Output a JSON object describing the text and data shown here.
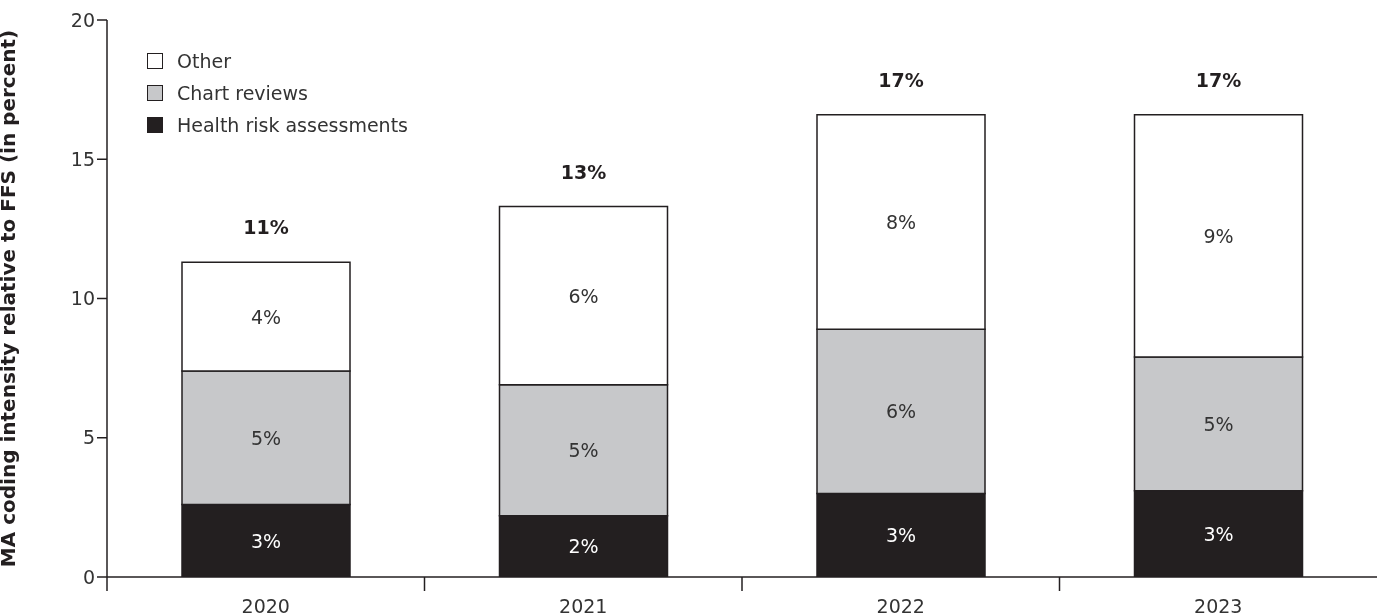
{
  "chart_data": {
    "type": "bar",
    "stacked": true,
    "ylabel": "MA coding intensity relative to FFS (in percent)",
    "categories": [
      "2020",
      "2021",
      "2022",
      "2023"
    ],
    "series": [
      {
        "name": "Health risk assessments",
        "color": "#231f20",
        "values": [
          2.6,
          2.2,
          3.0,
          3.1
        ],
        "value_labels": [
          "3%",
          "2%",
          "3%",
          "3%"
        ]
      },
      {
        "name": "Chart reviews",
        "color": "#c7c8ca",
        "values": [
          4.8,
          4.7,
          5.9,
          4.8
        ],
        "value_labels": [
          "5%",
          "5%",
          "6%",
          "5%"
        ]
      },
      {
        "name": "Other",
        "color": "#ffffff",
        "values": [
          3.9,
          6.4,
          7.7,
          8.7
        ],
        "value_labels": [
          "4%",
          "6%",
          "8%",
          "9%"
        ]
      }
    ],
    "totals": [
      "11%",
      "13%",
      "17%",
      "17%"
    ],
    "ylim": [
      0,
      20
    ],
    "yticks": [
      0,
      5,
      10,
      15,
      20
    ],
    "grid": false,
    "legend": "top left"
  }
}
